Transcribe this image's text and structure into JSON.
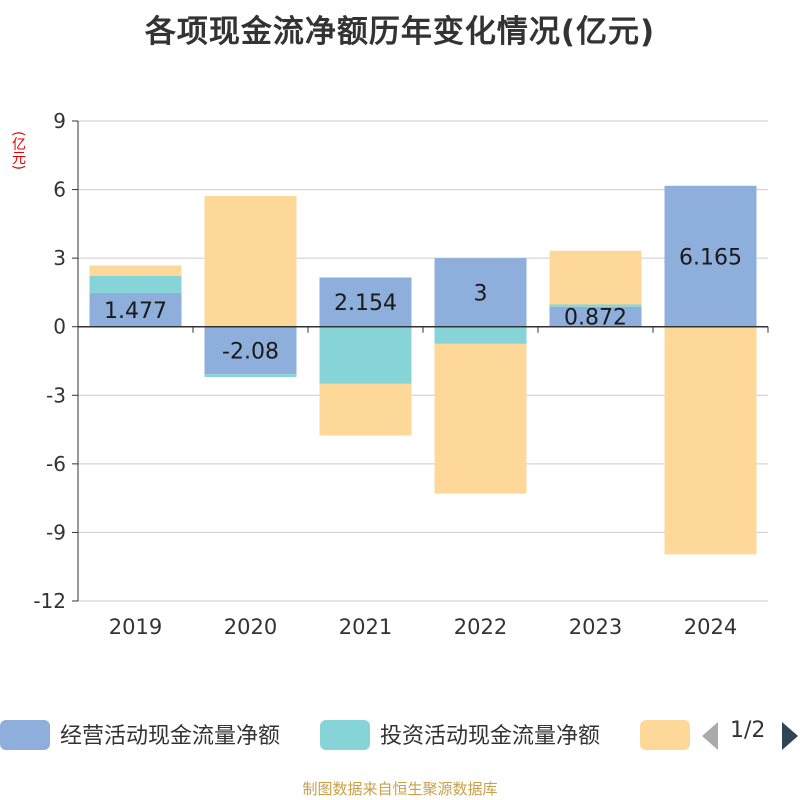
{
  "title": "各项现金流净额历年变化情况(亿元)",
  "unit_label": "(亿元)",
  "source": "制图数据来自恒生聚源数据库",
  "pager": {
    "text": "1/2"
  },
  "colors": {
    "operating": "#8eaedb",
    "investing": "#86d4d8",
    "financing": "#fdd899",
    "axis": "#333333",
    "grid": "#cccccc",
    "unit": "#e60000",
    "source": "#c8a04a"
  },
  "legend": [
    {
      "name": "经营活动现金流量净额",
      "color": "#8eaedb"
    },
    {
      "name": "投资活动现金流量净额",
      "color": "#86d4d8"
    },
    {
      "name": "",
      "color": "#fdd899"
    }
  ],
  "chart_data": {
    "type": "bar",
    "stacked": true,
    "title": "各项现金流净额历年变化情况(亿元)",
    "ylabel": "(亿元)",
    "ylim": [
      -12,
      9
    ],
    "yticks": [
      9,
      6,
      3,
      0,
      -3,
      -6,
      -9,
      -12
    ],
    "grid": true,
    "categories": [
      "2019",
      "2020",
      "2021",
      "2022",
      "2023",
      "2024"
    ],
    "series": [
      {
        "name": "经营活动现金流量净额",
        "values": [
          1.477,
          -2.08,
          2.154,
          3,
          0.872,
          6.165
        ],
        "labels": [
          "1.477",
          "-2.08",
          "2.154",
          "3",
          "0.872",
          "6.165"
        ]
      },
      {
        "name": "投资活动现金流量净额",
        "values": [
          0.75,
          -0.12,
          -2.5,
          -0.75,
          0.1,
          -0.01
        ]
      },
      {
        "values": [
          0.45,
          5.72,
          -2.26,
          -6.55,
          2.35,
          -9.95
        ]
      }
    ]
  }
}
